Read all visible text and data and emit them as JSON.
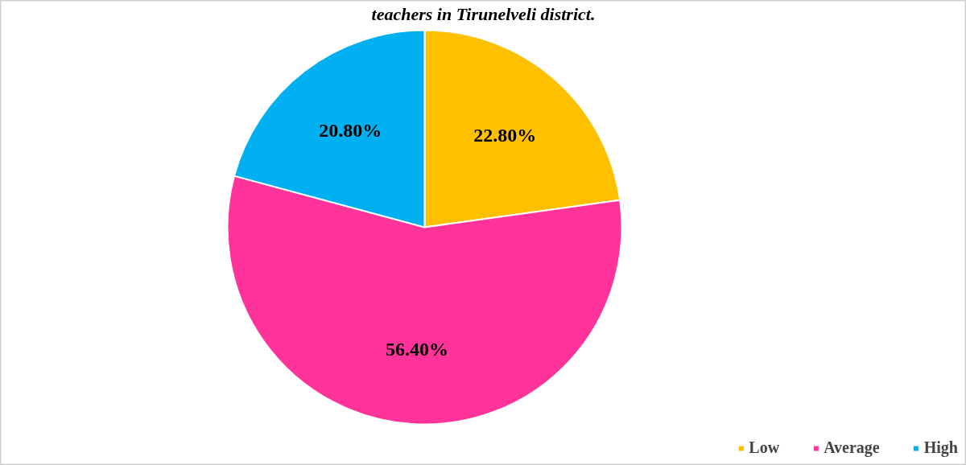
{
  "chart_data": {
    "type": "pie",
    "title": "teachers in Tirunelveli district.",
    "categories": [
      "Low",
      "Average",
      "High"
    ],
    "values": [
      22.8,
      56.4,
      20.8
    ],
    "colors": [
      "#ffc000",
      "#ff3399",
      "#00b0f0"
    ],
    "value_labels": [
      "22.80%",
      "56.40%",
      "20.80%"
    ],
    "legend": "bottom right"
  }
}
